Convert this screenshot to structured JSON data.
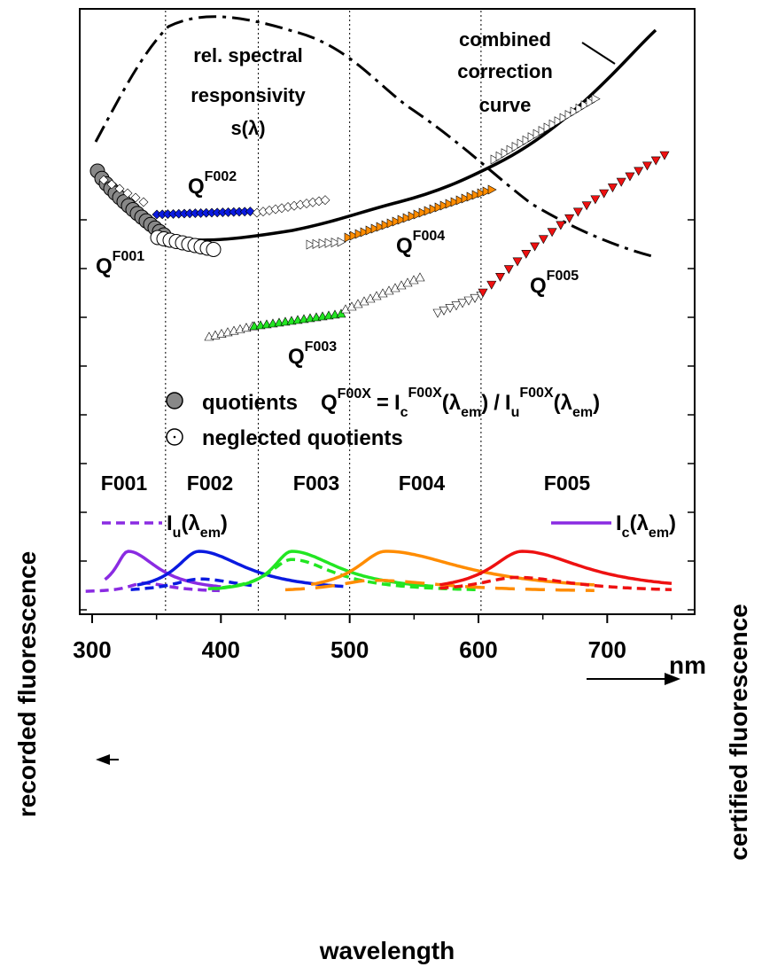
{
  "chart_data": {
    "type": "line",
    "xlabel": "wavelength",
    "xunit": "nm",
    "ylabel_left": "recorded fluorescence",
    "ylabel_right": "certified fluorescence",
    "xlim": [
      295,
      760
    ],
    "xticks": [
      300,
      400,
      500,
      600,
      700
    ],
    "grid": false,
    "annotations": {
      "responsivity": [
        "rel. spectral",
        "responsivity",
        "s(λ)"
      ],
      "combined": [
        "combined",
        "correction",
        "curve"
      ]
    },
    "legend": {
      "quotients": "quotients",
      "formula": {
        "q": "Q",
        "q_sup": "F00X",
        "eq": "=",
        "ic": "I",
        "ic_sub": "c",
        "ic_sup": "F00X",
        "lam": "(λ",
        "em": "em",
        "close": ")",
        "slash": "/",
        "iu": "I",
        "iu_sub": "u",
        "iu_sup": "F00X"
      },
      "neglected": "neglected quotients",
      "iu": {
        "main": "I",
        "sub": "u",
        "lam": "(λ",
        "em": "em",
        "close": ")"
      },
      "ic": {
        "main": "I",
        "sub": "c",
        "lam": "(λ",
        "em": "em",
        "close": ")"
      }
    },
    "quotient_labels": [
      {
        "main": "Q",
        "sup": "F001"
      },
      {
        "main": "Q",
        "sup": "F002"
      },
      {
        "main": "Q",
        "sup": "F003"
      },
      {
        "main": "Q",
        "sup": "F004"
      },
      {
        "main": "Q",
        "sup": "F005"
      }
    ],
    "filter_labels": [
      "F001",
      "F002",
      "F003",
      "F004",
      "F005"
    ],
    "filter_boundaries": [
      357,
      429,
      500,
      602
    ],
    "colors": {
      "F001": "#8a2be2",
      "F002": "#0a1ae0",
      "F003": "#22e622",
      "F004": "#ff8c00",
      "F005": "#ee1111",
      "quotient_fill": "#888888"
    },
    "emission_peaks": [
      {
        "name": "F001",
        "center": 328,
        "width_left": 12,
        "width_right": 28,
        "x_range": [
          310,
          400
        ],
        "certified_max": 1.0,
        "recorded_center": 340,
        "recorded_max": 0.22,
        "recorded_range": [
          295,
          400
        ]
      },
      {
        "name": "F002",
        "center": 383,
        "width_left": 22,
        "width_right": 45,
        "x_range": [
          335,
          495
        ],
        "certified_max": 1.0,
        "recorded_center": 384,
        "recorded_max": 0.32,
        "recorded_range": [
          330,
          425
        ]
      },
      {
        "name": "F003",
        "center": 455,
        "width_left": 18,
        "width_right": 45,
        "x_range": [
          395,
          565
        ],
        "certified_max": 1.0,
        "recorded_center": 455,
        "recorded_max": 0.8,
        "recorded_range": [
          390,
          600
        ]
      },
      {
        "name": "F004",
        "center": 528,
        "width_left": 28,
        "width_right": 75,
        "x_range": [
          470,
          690
        ],
        "certified_max": 1.0,
        "recorded_center": 518,
        "recorded_max": 0.29,
        "recorded_range": [
          450,
          690
        ]
      },
      {
        "name": "F005",
        "center": 634,
        "width_left": 30,
        "width_right": 60,
        "x_range": [
          570,
          750
        ],
        "certified_max": 1.0,
        "recorded_center": 630,
        "recorded_max": 0.36,
        "recorded_range": [
          570,
          750
        ]
      }
    ]
  }
}
